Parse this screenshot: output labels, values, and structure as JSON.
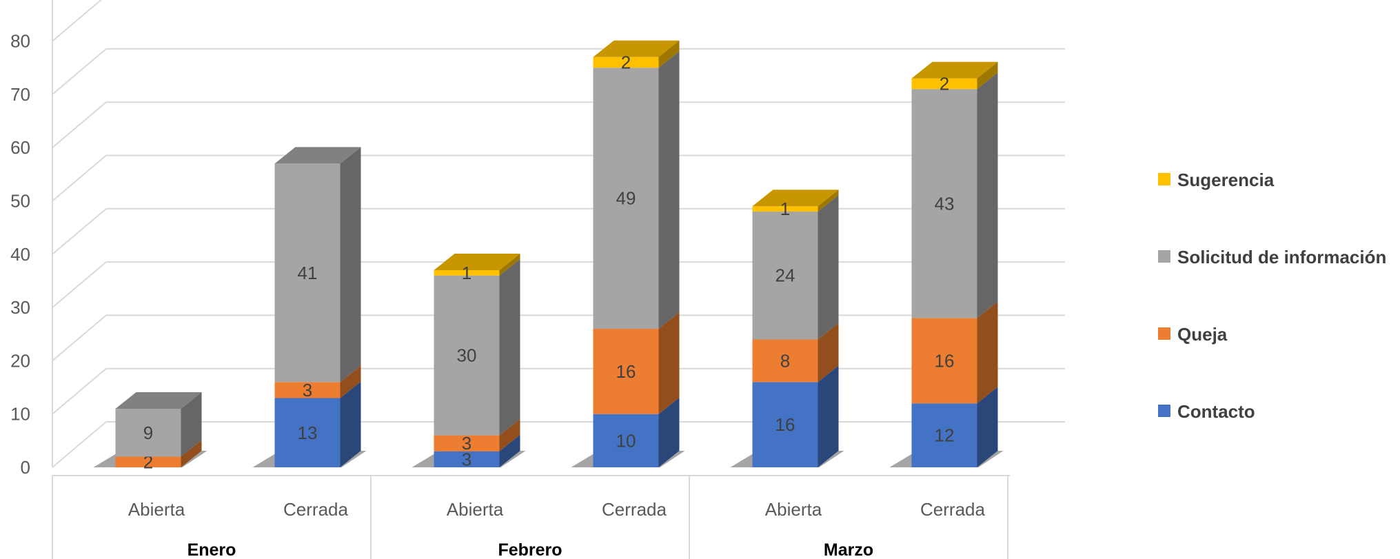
{
  "chart_data": {
    "type": "bar",
    "stacked": true,
    "three_d": true,
    "groups": [
      "Enero",
      "Febrero",
      "Marzo"
    ],
    "categories": [
      "Abierta",
      "Cerrada",
      "Abierta",
      "Cerrada",
      "Abierta",
      "Cerrada"
    ],
    "series": [
      {
        "name": "Contacto",
        "color": "#4472C4",
        "values": [
          0,
          13,
          3,
          10,
          16,
          12
        ]
      },
      {
        "name": "Queja",
        "color": "#ED7D31",
        "values": [
          2,
          3,
          3,
          16,
          8,
          16
        ]
      },
      {
        "name": "Solicitud de información",
        "color": "#A5A5A5",
        "values": [
          9,
          41,
          30,
          49,
          24,
          43
        ]
      },
      {
        "name": "Sugerencia",
        "color": "#FFC000",
        "values": [
          0,
          0,
          1,
          2,
          1,
          2
        ]
      }
    ],
    "ylim": [
      0,
      80
    ],
    "yticks": [
      "0",
      "10",
      "20",
      "30",
      "40",
      "50",
      "60",
      "70",
      "80"
    ],
    "grid": true,
    "legend_position": "right",
    "legend_order": [
      "Sugerencia",
      "Solicitud de información",
      "Queja",
      "Contacto"
    ]
  }
}
